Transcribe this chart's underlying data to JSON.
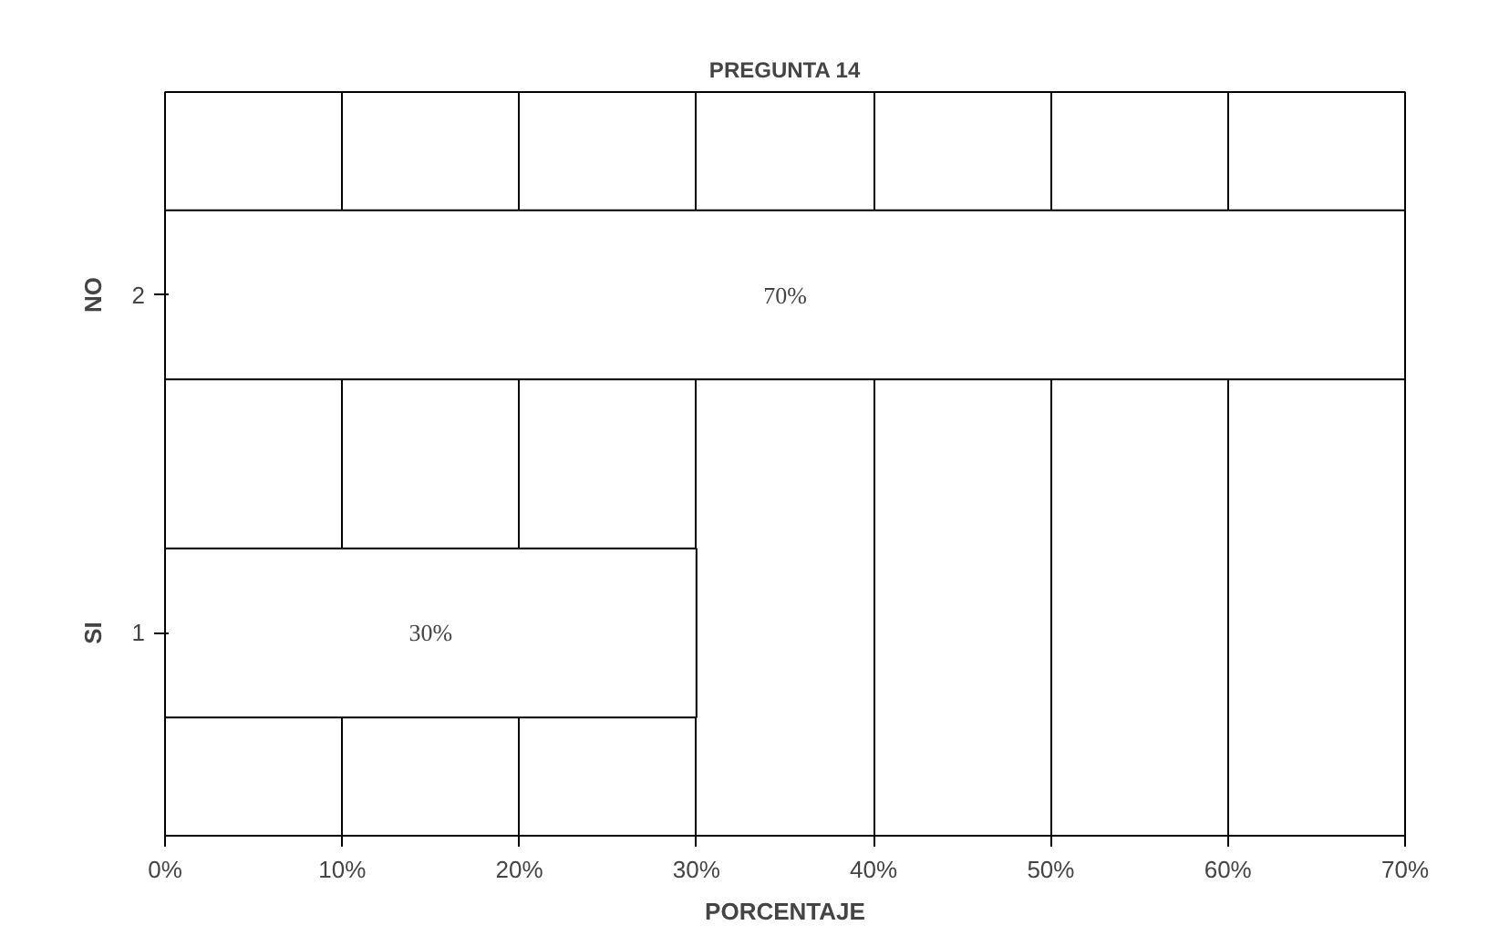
{
  "chart_data": {
    "type": "bar",
    "orientation": "horizontal",
    "title": "PREGUNTA 14",
    "xlabel": "PORCENTAJE",
    "categories": [
      "2",
      "1"
    ],
    "annotations": [
      "NO",
      "SI"
    ],
    "values": [
      70,
      30
    ],
    "value_labels": [
      "70%",
      "30%"
    ],
    "color": "#ffffff",
    "xlim": [
      0,
      70
    ],
    "xticks": [
      {
        "value": 0,
        "label": "0%"
      },
      {
        "value": 10,
        "label": "10%"
      },
      {
        "value": 20,
        "label": "20%"
      },
      {
        "value": 30,
        "label": "30%"
      },
      {
        "value": 40,
        "label": "40%"
      },
      {
        "value": 50,
        "label": "50%"
      },
      {
        "value": 60,
        "label": "60%"
      },
      {
        "value": 70,
        "label": "70%"
      }
    ],
    "grid": "x"
  }
}
